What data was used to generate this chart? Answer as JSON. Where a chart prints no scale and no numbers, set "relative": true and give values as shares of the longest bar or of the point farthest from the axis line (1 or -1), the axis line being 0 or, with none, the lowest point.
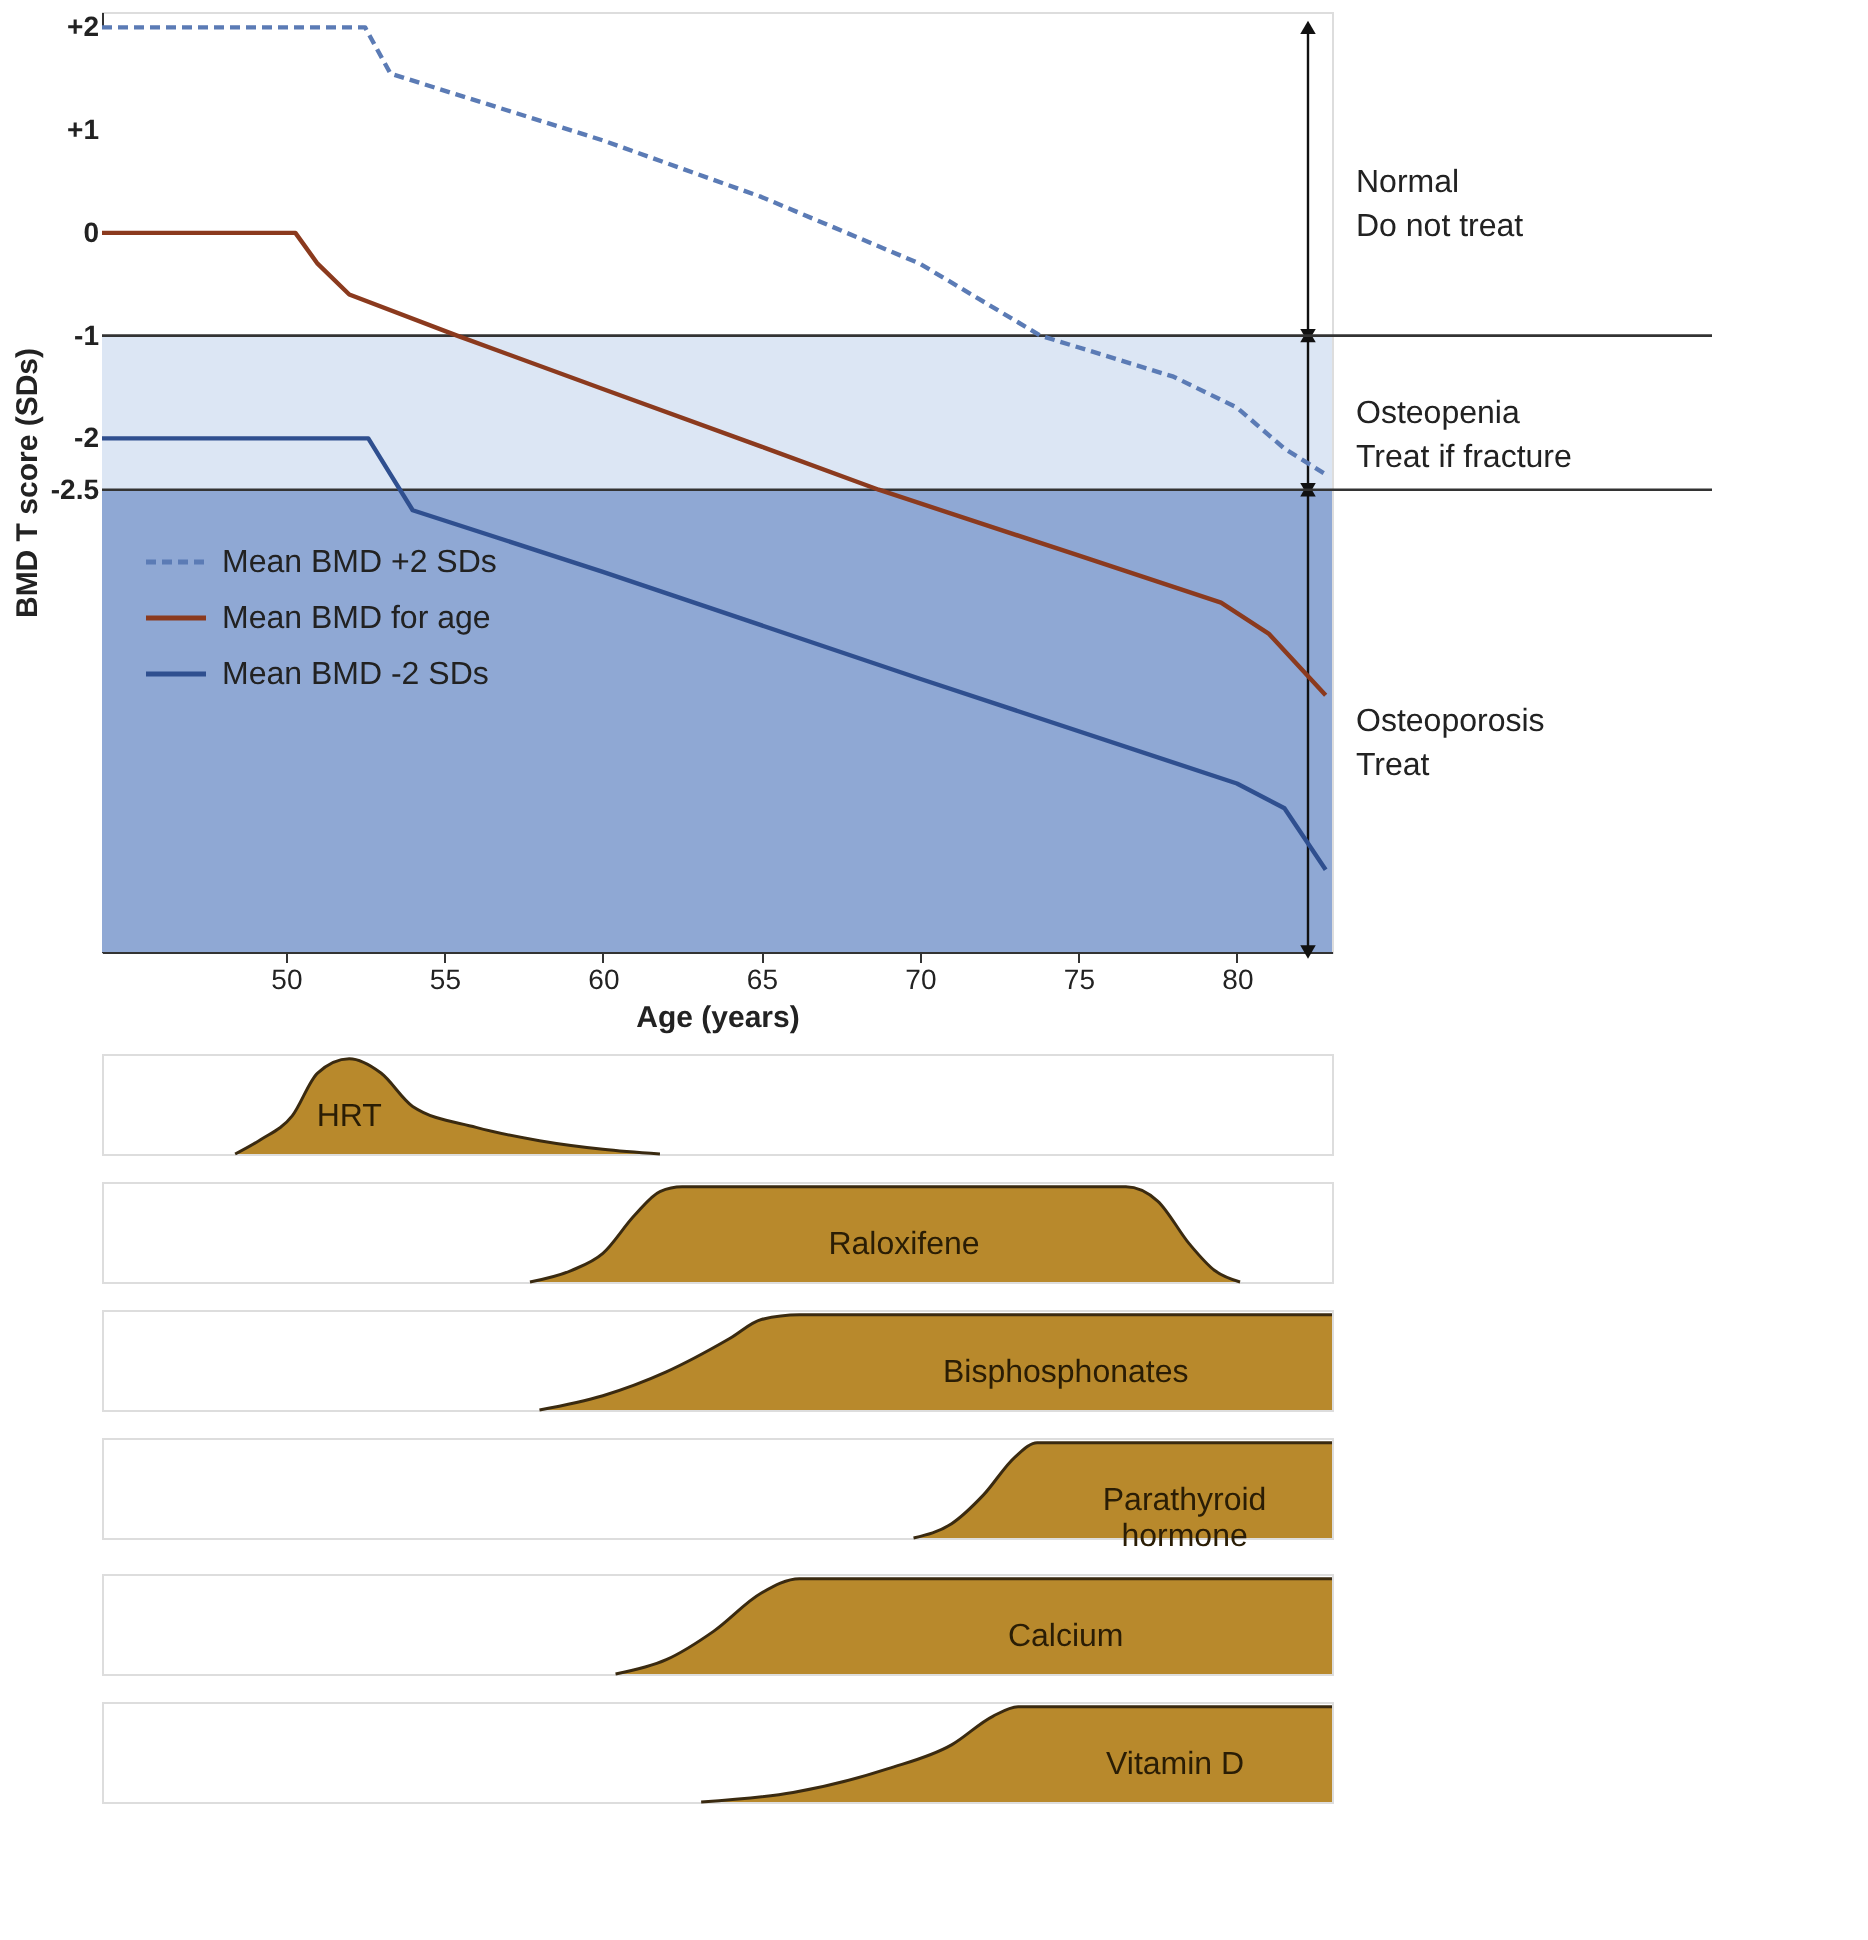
{
  "chart_data": [
    {
      "type": "line",
      "xlabel": "Age (years)",
      "ylabel": "BMD T score (SDs)",
      "xlim": [
        44.2,
        83
      ],
      "ylim": [
        -7,
        2.15
      ],
      "xticks": [
        50,
        55,
        60,
        65,
        70,
        75,
        80
      ],
      "yticks": [
        {
          "value": 2,
          "label": "+2"
        },
        {
          "value": 1,
          "label": "+1"
        },
        0,
        -1,
        -2,
        -2.5
      ],
      "legend": "left",
      "series": [
        {
          "name": "Mean BMD +2 SDs",
          "color": "#5b7bb5",
          "line_style": "dashed",
          "x": [
            44.2,
            52.5,
            53.3,
            60,
            65,
            70,
            73.8,
            78,
            80,
            81.5,
            82.8
          ],
          "values": [
            2,
            2,
            1.55,
            0.9,
            0.35,
            -0.3,
            -1.0,
            -1.4,
            -1.7,
            -2.1,
            -2.35
          ]
        },
        {
          "name": "Mean BMD for age",
          "color": "#8b3a1e",
          "line_style": "solid",
          "x": [
            44.2,
            50.3,
            51,
            52,
            55.4,
            60,
            65,
            68.7,
            75,
            79.5,
            81,
            82.8
          ],
          "values": [
            0,
            0,
            -0.3,
            -0.6,
            -1.0,
            -1.52,
            -2.08,
            -2.5,
            -3.14,
            -3.6,
            -3.9,
            -4.5
          ]
        },
        {
          "name": "Mean BMD -2 SDs",
          "color": "#2f4f8f",
          "line_style": "solid",
          "x": [
            44.2,
            52.6,
            53.3,
            54,
            60,
            70,
            80,
            81.5,
            82.8
          ],
          "values": [
            -2,
            -2,
            -2.35,
            -2.7,
            -3.3,
            -4.34,
            -5.36,
            -5.6,
            -6.2
          ]
        }
      ],
      "bands": [
        {
          "axis": "y",
          "from": -1,
          "to": 2,
          "label": "Normal\nDo not treat",
          "color": "#ffffff"
        },
        {
          "axis": "y",
          "from": -2.5,
          "to": -1,
          "label": "Osteopenia\nTreat if fracture",
          "color": "#dce6f4"
        },
        {
          "axis": "y",
          "from": -7,
          "to": -2.5,
          "label": "Osteoporosis\nTreat",
          "color": "#8fa8d4"
        }
      ],
      "ref_lines": [
        {
          "axis": "y",
          "value": -1,
          "color": "#333333"
        },
        {
          "axis": "y",
          "value": -2.5,
          "color": "#333333"
        }
      ]
    },
    {
      "type": "area",
      "relative": true,
      "xlim": [
        44.2,
        83
      ],
      "tick_labels": false,
      "series": [
        {
          "name": "HRT",
          "color": "#b8892c",
          "x": [
            48.4,
            49.2,
            50.2,
            51,
            52,
            53,
            54,
            56,
            58,
            60,
            61.8
          ],
          "values": [
            0,
            0.15,
            0.4,
            0.85,
            1,
            0.85,
            0.5,
            0.28,
            0.14,
            0.05,
            0
          ]
        }
      ]
    },
    {
      "type": "area",
      "relative": true,
      "xlim": [
        44.2,
        83
      ],
      "tick_labels": false,
      "series": [
        {
          "name": "Raloxifene",
          "color": "#b8892c",
          "x": [
            57.7,
            59,
            60,
            61,
            61.8,
            62.5,
            76.5,
            77.5,
            78.5,
            79.3,
            80.1
          ],
          "values": [
            0,
            0.12,
            0.3,
            0.7,
            0.95,
            1,
            1,
            0.85,
            0.4,
            0.12,
            0
          ]
        }
      ]
    },
    {
      "type": "area",
      "relative": true,
      "xlim": [
        44.2,
        83
      ],
      "tick_labels": false,
      "series": [
        {
          "name": "Bisphosphonates",
          "color": "#b8892c",
          "x": [
            58,
            60,
            62,
            64,
            65,
            66.2,
            83
          ],
          "values": [
            0,
            0.15,
            0.4,
            0.75,
            0.95,
            1,
            1
          ]
        }
      ]
    },
    {
      "type": "area",
      "relative": true,
      "xlim": [
        44.2,
        83
      ],
      "tick_labels": false,
      "series": [
        {
          "name": "Parathyroid\nhormone",
          "color": "#b8892c",
          "x": [
            69.8,
            71,
            72,
            73,
            73.7,
            83
          ],
          "values": [
            0,
            0.15,
            0.45,
            0.85,
            1,
            1
          ]
        }
      ]
    },
    {
      "type": "area",
      "relative": true,
      "xlim": [
        44.2,
        83
      ],
      "tick_labels": false,
      "series": [
        {
          "name": "Calcium",
          "color": "#b8892c",
          "x": [
            60.4,
            62,
            63.5,
            65,
            66.2,
            83
          ],
          "values": [
            0,
            0.15,
            0.45,
            0.85,
            1,
            1
          ]
        }
      ]
    },
    {
      "type": "area",
      "relative": true,
      "xlim": [
        44.2,
        83
      ],
      "tick_labels": false,
      "series": [
        {
          "name": "Vitamin D",
          "color": "#b8892c",
          "x": [
            63.1,
            66,
            69,
            71,
            72.3,
            73.1,
            83
          ],
          "values": [
            0,
            0.1,
            0.35,
            0.6,
            0.9,
            1,
            1
          ]
        }
      ]
    }
  ]
}
